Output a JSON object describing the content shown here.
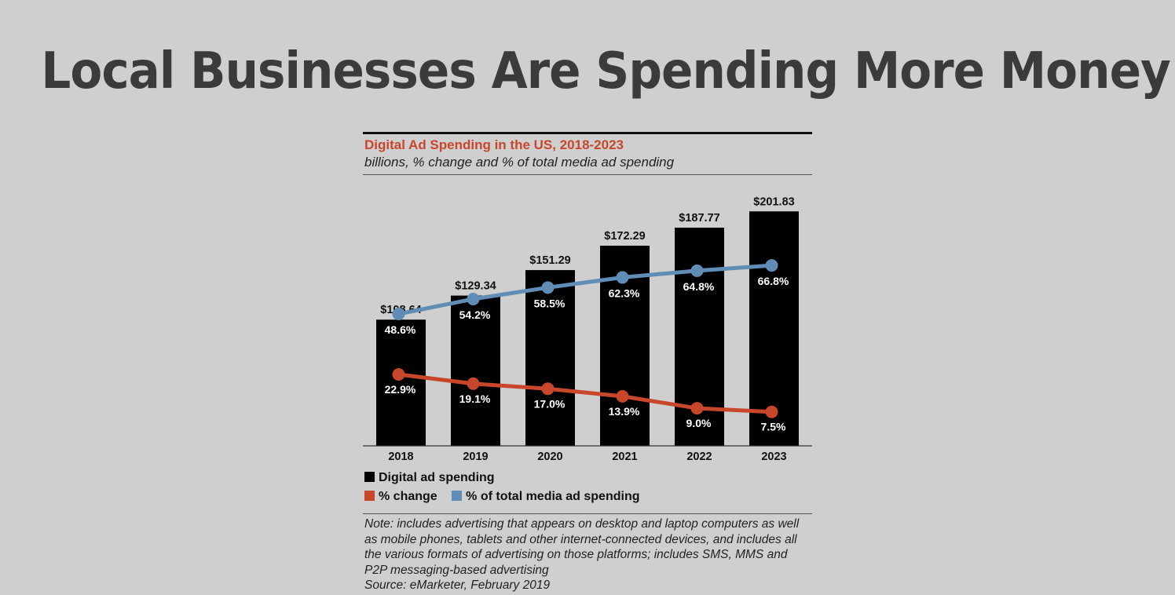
{
  "slide": {
    "title": "Local Businesses Are Spending More Money"
  },
  "chart_data": {
    "type": "bar",
    "title": "Digital Ad Spending in the US, 2018-2023",
    "subtitle": "billions, % change and % of total media ad spending",
    "categories": [
      "2018",
      "2019",
      "2020",
      "2021",
      "2022",
      "2023"
    ],
    "series": [
      {
        "name": "Digital ad spending",
        "type": "bar",
        "values": [
          108.64,
          129.34,
          151.29,
          172.29,
          187.77,
          201.83
        ],
        "labels": [
          "$108.64",
          "$129.34",
          "$151.29",
          "$172.29",
          "$187.77",
          "$201.83"
        ],
        "color": "#000000"
      },
      {
        "name": "% change",
        "type": "line",
        "values": [
          22.9,
          19.1,
          17.0,
          13.9,
          9.0,
          7.5
        ],
        "labels": [
          "22.9%",
          "19.1%",
          "17.0%",
          "13.9%",
          "9.0%",
          "7.5%"
        ],
        "color": "#c8472b"
      },
      {
        "name": "% of total media ad spending",
        "type": "line",
        "values": [
          48.6,
          54.2,
          58.5,
          62.3,
          64.8,
          66.8
        ],
        "labels": [
          "48.6%",
          "54.2%",
          "58.5%",
          "62.3%",
          "64.8%",
          "66.8%"
        ],
        "color": "#5f8db5"
      }
    ],
    "legend_placement": "bottom-left",
    "grid": false,
    "note": "Note: includes advertising that appears on desktop and laptop computers as well as mobile phones, tablets and other internet-connected devices, and includes all the various formats of advertising on those platforms; includes SMS, MMS and P2P messaging-based advertising",
    "source": "Source: eMarketer, February 2019"
  }
}
